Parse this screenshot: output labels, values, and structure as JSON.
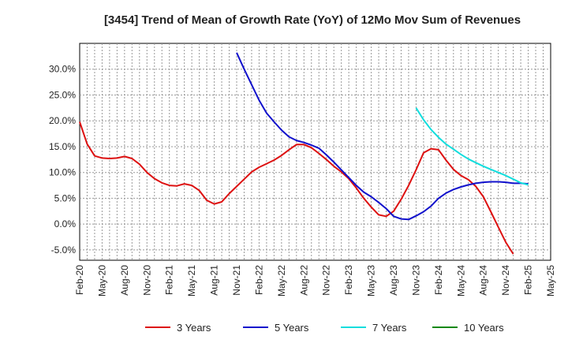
{
  "chart_data": {
    "type": "line",
    "title": "[3454]  Trend of Mean of Growth Rate (YoY) of 12Mo Mov Sum of Revenues",
    "xlabel": "",
    "ylabel": "",
    "ylim": [
      -7.0,
      35.0
    ],
    "yticks": [
      -5.0,
      0.0,
      5.0,
      10.0,
      15.0,
      20.0,
      25.0,
      30.0
    ],
    "ytick_labels": [
      "-5.0%",
      "0.0%",
      "5.0%",
      "10.0%",
      "15.0%",
      "20.0%",
      "25.0%",
      "30.0%"
    ],
    "xtick_labels": [
      "Feb-20",
      "May-20",
      "Aug-20",
      "Nov-20",
      "Feb-21",
      "May-21",
      "Aug-21",
      "Nov-21",
      "Feb-22",
      "May-22",
      "Aug-22",
      "Nov-22",
      "Feb-23",
      "May-23",
      "Aug-23",
      "Nov-23",
      "Feb-24",
      "May-24",
      "Aug-24",
      "Nov-24",
      "Feb-25",
      "May-25"
    ],
    "x_start": "Feb-20",
    "grid": true,
    "legend_position": "bottom",
    "series": [
      {
        "name": "3 Years",
        "color": "#dd1111",
        "start_index": 0,
        "values": [
          19.8,
          15.5,
          13.2,
          12.8,
          12.7,
          12.8,
          13.1,
          12.7,
          11.6,
          10.0,
          8.8,
          8.0,
          7.5,
          7.4,
          7.8,
          7.5,
          6.5,
          4.6,
          3.9,
          4.3,
          5.9,
          7.3,
          8.7,
          10.1,
          11.0,
          11.7,
          12.4,
          13.3,
          14.4,
          15.4,
          15.4,
          14.8,
          13.7,
          12.5,
          11.2,
          10.1,
          8.8,
          7.0,
          5.0,
          3.3,
          1.8,
          1.5,
          2.5,
          4.8,
          7.5,
          10.5,
          13.8,
          14.6,
          14.4,
          12.4,
          10.6,
          9.4,
          8.6,
          7.3,
          5.3,
          2.4,
          -0.6,
          -3.5,
          -5.8
        ]
      },
      {
        "name": "5 Years",
        "color": "#1111cc",
        "start_index": 21,
        "values": [
          33.2,
          30.0,
          27.0,
          24.0,
          21.5,
          19.8,
          18.2,
          16.9,
          16.2,
          15.8,
          15.3,
          14.7,
          13.4,
          12.0,
          10.5,
          9.0,
          7.5,
          6.2,
          5.3,
          4.2,
          3.0,
          1.5,
          1.0,
          0.9,
          1.6,
          2.4,
          3.5,
          5.0,
          6.0,
          6.7,
          7.2,
          7.6,
          7.9,
          8.1,
          8.2,
          8.2,
          8.1,
          7.9,
          7.9,
          7.8
        ]
      },
      {
        "name": "7 Years",
        "color": "#11dddd",
        "start_index": 45,
        "values": [
          22.5,
          20.2,
          18.3,
          16.8,
          15.5,
          14.5,
          13.5,
          12.6,
          11.9,
          11.2,
          10.6,
          10.0,
          9.4,
          8.7,
          8.0,
          7.6
        ]
      },
      {
        "name": "10 Years",
        "color": "#118811",
        "start_index": 0,
        "values": []
      }
    ]
  }
}
